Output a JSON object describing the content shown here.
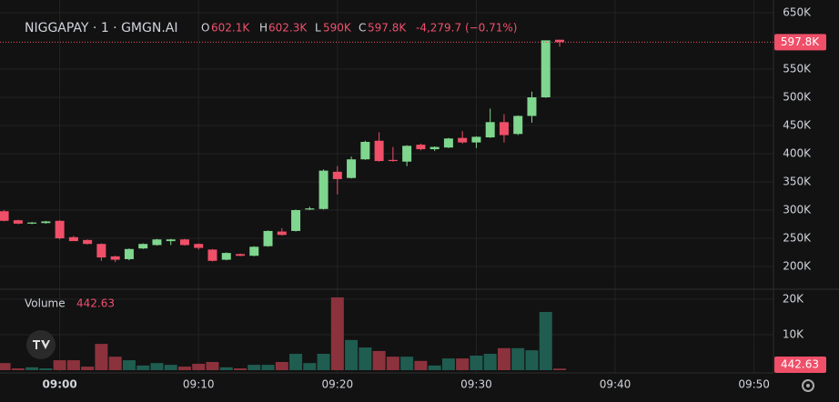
{
  "chart_data": {
    "type": "candlestick",
    "header": {
      "symbol": "NIGGAPAY · 1 · GMGN.AI",
      "open_label": "O",
      "open": "602.1K",
      "high_label": "H",
      "high": "602.3K",
      "low_label": "L",
      "low": "590K",
      "close_label": "C",
      "close": "597.8K",
      "change": "-4,279.7 (−0.71%)"
    },
    "volume_title": "Volume",
    "x": [
      -4,
      -3,
      -2,
      -1,
      0,
      1,
      2,
      3,
      4,
      5,
      6,
      7,
      8,
      9,
      10,
      11,
      12,
      13,
      14,
      15,
      16,
      17,
      18,
      19,
      20,
      21,
      22,
      23,
      24,
      25,
      26,
      27,
      28,
      29,
      30,
      31,
      32,
      33,
      34,
      35,
      36
    ],
    "xlim": [
      -4.3,
      51.4
    ],
    "xticks": [
      {
        "value": 0,
        "label": "09:00"
      },
      {
        "value": 10,
        "label": "09:10"
      },
      {
        "value": 20,
        "label": "09:20"
      },
      {
        "value": 30,
        "label": "09:30"
      },
      {
        "value": 40,
        "label": "09:40"
      },
      {
        "value": 50,
        "label": "09:50"
      }
    ],
    "open": [
      298000,
      282000,
      276000,
      277000,
      281000,
      252000,
      247000,
      240000,
      218000,
      213000,
      232000,
      238000,
      245000,
      248000,
      240000,
      230000,
      212000,
      222000,
      219000,
      236000,
      262000,
      263000,
      301000,
      302000,
      368000,
      357000,
      390000,
      423000,
      389000,
      386000,
      416000,
      408000,
      411000,
      428000,
      420000,
      429000,
      456000,
      435000,
      467000,
      500000,
      602100
    ],
    "high": [
      300000,
      283000,
      279000,
      281000,
      282000,
      254000,
      248000,
      241000,
      219000,
      232000,
      241000,
      249000,
      249000,
      249000,
      241000,
      231000,
      225000,
      223000,
      236000,
      264000,
      268000,
      301000,
      306000,
      372000,
      378000,
      395000,
      423000,
      438000,
      412000,
      415000,
      418000,
      413000,
      428000,
      440000,
      431000,
      480000,
      470000,
      468000,
      510000,
      601000,
      602300
    ],
    "low": [
      280000,
      275000,
      275000,
      276000,
      248000,
      250000,
      239000,
      210000,
      208000,
      211000,
      231000,
      237000,
      238000,
      237000,
      230000,
      209000,
      211000,
      218000,
      218000,
      235000,
      255000,
      262000,
      300000,
      301000,
      328000,
      356000,
      389000,
      386000,
      386000,
      378000,
      406000,
      405000,
      410000,
      418000,
      410000,
      428000,
      420000,
      433000,
      455000,
      499000,
      590000
    ],
    "close": [
      281000,
      276000,
      278000,
      280000,
      250000,
      245000,
      240000,
      216000,
      212000,
      231000,
      240000,
      248000,
      248000,
      238000,
      233000,
      210000,
      224000,
      219000,
      235000,
      263000,
      256000,
      300000,
      303000,
      370000,
      355000,
      390000,
      421000,
      387000,
      387000,
      414000,
      408000,
      412000,
      427000,
      420000,
      430000,
      456000,
      433000,
      467000,
      500000,
      601000,
      597800
    ],
    "volume": [
      2000,
      500,
      800,
      500,
      2800,
      2800,
      1000,
      7400,
      3800,
      2800,
      1300,
      2000,
      1500,
      1000,
      1800,
      2300,
      800,
      500,
      1500,
      1500,
      2300,
      4600,
      2000,
      4600,
      20500,
      8500,
      6400,
      5400,
      3800,
      3800,
      2600,
      1300,
      3300,
      3300,
      4100,
      4600,
      6200,
      6200,
      5600,
      16400,
      442.63
    ],
    "ylim": [
      159700,
      672600
    ],
    "yticks": [
      {
        "value": 200000,
        "label": "200K"
      },
      {
        "value": 250000,
        "label": "250K"
      },
      {
        "value": 300000,
        "label": "300K"
      },
      {
        "value": 350000,
        "label": "350K"
      },
      {
        "value": 400000,
        "label": "400K"
      },
      {
        "value": 450000,
        "label": "450K"
      },
      {
        "value": 500000,
        "label": "500K"
      },
      {
        "value": 550000,
        "label": "550K"
      },
      {
        "value": 650000,
        "label": "650K"
      }
    ],
    "volume_ylim": [
      -770,
      22800
    ],
    "volume_yticks": [
      {
        "value": 10000,
        "label": "10K"
      },
      {
        "value": 20000,
        "label": "20K"
      }
    ],
    "up_color": "#7fd68e",
    "down_color": "#ef4f68",
    "volume_up_color": "#1f5d50",
    "volume_down_color": "#8c323d",
    "grid": true
  }
}
